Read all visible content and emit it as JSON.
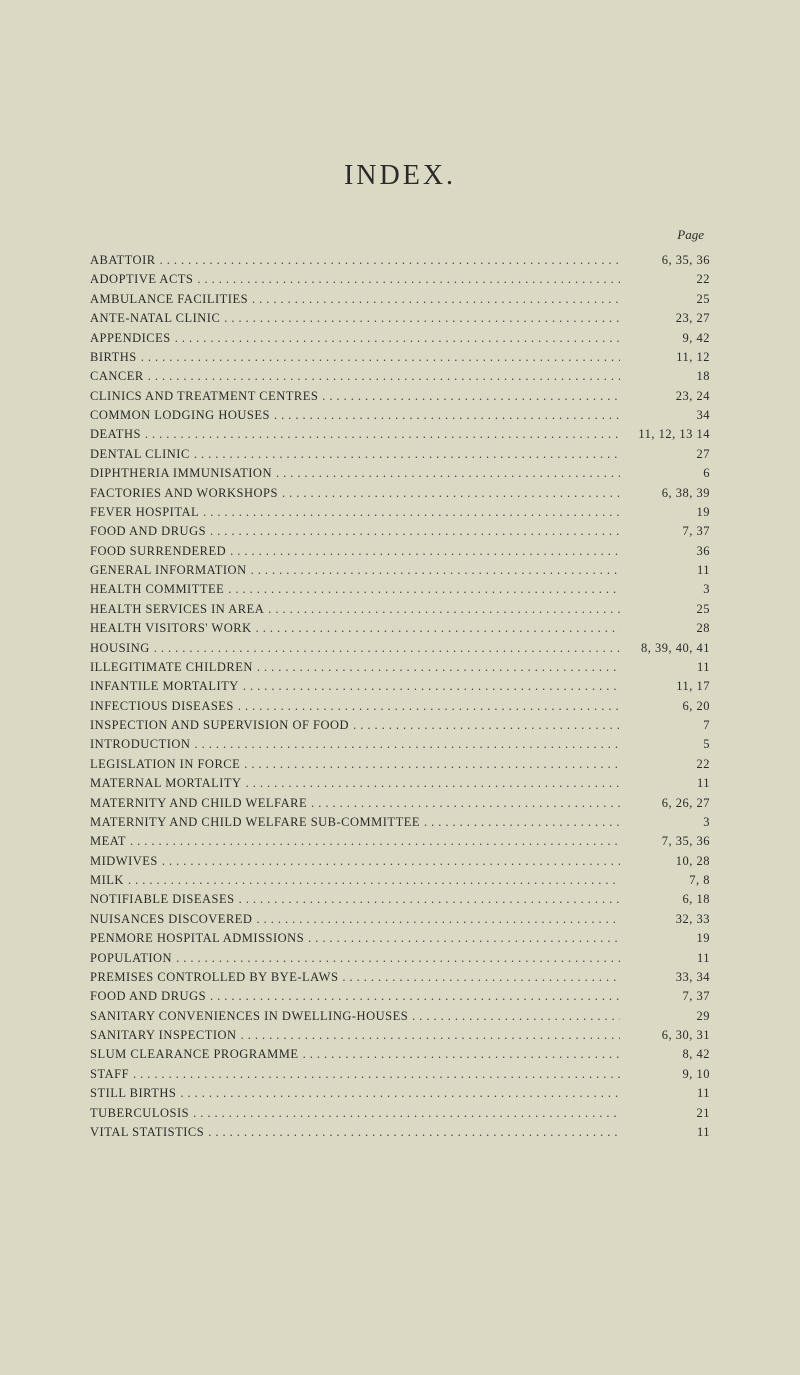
{
  "title": "INDEX.",
  "page_header": "Page",
  "background_color": "#dbd8c3",
  "text_color": "#2a2a2a",
  "entries": [
    {
      "label": "ABATTOIR",
      "pages": "6, 35, 36"
    },
    {
      "label": "ADOPTIVE ACTS",
      "pages": "22"
    },
    {
      "label": "AMBULANCE FACILITIES",
      "pages": "25"
    },
    {
      "label": "ANTE-NATAL CLINIC",
      "pages": "23, 27"
    },
    {
      "label": "APPENDICES",
      "pages": "9, 42"
    },
    {
      "label": "BIRTHS",
      "pages": "11, 12"
    },
    {
      "label": "CANCER",
      "pages": "18"
    },
    {
      "label": "CLINICS AND TREATMENT CENTRES",
      "pages": "23, 24"
    },
    {
      "label": "COMMON LODGING HOUSES",
      "pages": "34"
    },
    {
      "label": "DEATHS",
      "pages": "11, 12, 13 14"
    },
    {
      "label": "DENTAL CLINIC",
      "pages": "27"
    },
    {
      "label": "DIPHTHERIA IMMUNISATION",
      "pages": "6"
    },
    {
      "label": "FACTORIES AND WORKSHOPS",
      "pages": "6, 38, 39"
    },
    {
      "label": "FEVER HOSPITAL",
      "pages": "19"
    },
    {
      "label": "FOOD AND DRUGS",
      "pages": "7, 37"
    },
    {
      "label": "FOOD SURRENDERED",
      "pages": "36"
    },
    {
      "label": "GENERAL INFORMATION",
      "pages": "11"
    },
    {
      "label": "HEALTH COMMITTEE",
      "pages": "3"
    },
    {
      "label": "HEALTH SERVICES IN AREA",
      "pages": "25"
    },
    {
      "label": "HEALTH VISITORS' WORK",
      "pages": "28"
    },
    {
      "label": "HOUSING",
      "pages": "8, 39, 40, 41"
    },
    {
      "label": "ILLEGITIMATE CHILDREN",
      "pages": "11"
    },
    {
      "label": "INFANTILE MORTALITY",
      "pages": "11, 17"
    },
    {
      "label": "INFECTIOUS DISEASES",
      "pages": "6, 20"
    },
    {
      "label": "INSPECTION AND SUPERVISION OF FOOD",
      "pages": "7"
    },
    {
      "label": "INTRODUCTION",
      "pages": "5"
    },
    {
      "label": "LEGISLATION IN FORCE",
      "pages": "22"
    },
    {
      "label": "MATERNAL MORTALITY",
      "pages": "11"
    },
    {
      "label": "MATERNITY AND CHILD WELFARE",
      "pages": "6, 26, 27"
    },
    {
      "label": "MATERNITY AND CHILD WELFARE SUB-COMMITTEE",
      "pages": "3"
    },
    {
      "label": "MEAT",
      "pages": "7, 35, 36"
    },
    {
      "label": "MIDWIVES",
      "pages": "10, 28"
    },
    {
      "label": "MILK",
      "pages": "7, 8"
    },
    {
      "label": "NOTIFIABLE DISEASES",
      "pages": "6, 18"
    },
    {
      "label": "NUISANCES DISCOVERED",
      "pages": "32, 33"
    },
    {
      "label": "PENMORE HOSPITAL ADMISSIONS",
      "pages": "19"
    },
    {
      "label": "POPULATION",
      "pages": "11"
    },
    {
      "label": "PREMISES CONTROLLED BY BYE-LAWS",
      "pages": "33, 34"
    },
    {
      "label": "FOOD AND DRUGS",
      "pages": "7, 37"
    },
    {
      "label": "SANITARY CONVENIENCES IN DWELLING-HOUSES",
      "pages": "29"
    },
    {
      "label": "SANITARY INSPECTION",
      "pages": "6, 30, 31"
    },
    {
      "label": "SLUM CLEARANCE PROGRAMME",
      "pages": "8, 42"
    },
    {
      "label": "STAFF",
      "pages": "9, 10"
    },
    {
      "label": "STILL BIRTHS",
      "pages": "11"
    },
    {
      "label": "TUBERCULOSIS",
      "pages": "21"
    },
    {
      "label": "VITAL STATISTICS",
      "pages": "11"
    }
  ]
}
